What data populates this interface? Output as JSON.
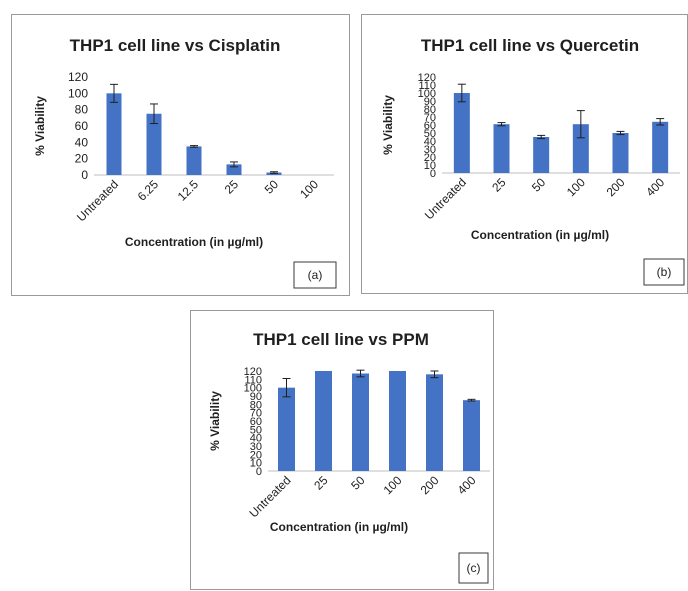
{
  "colors": {
    "bar": "#4472c4",
    "error": "#1f1f1f",
    "text": "#1f1f1f",
    "axis": "#bfbfbf"
  },
  "chart_data": [
    {
      "type": "bar",
      "title": "THP1 cell line vs Cisplatin",
      "xlabel": "Concentration (in µg/ml)",
      "ylabel": "% Viability",
      "tag": "(a)",
      "categories": [
        "Untreated",
        "6.25",
        "12.5",
        "25",
        "50",
        "100"
      ],
      "values": [
        100,
        75,
        35,
        13,
        3,
        0
      ],
      "errors": [
        11,
        12,
        1,
        3,
        1,
        0
      ],
      "ylim": [
        0,
        120
      ],
      "yticks": [
        "0",
        "20",
        "40",
        "60",
        "80",
        "100",
        "120"
      ],
      "grid": false,
      "legend": "none"
    },
    {
      "type": "bar",
      "title": "THP1 cell line vs Quercetin",
      "xlabel": "Concentration (in µg/ml)",
      "ylabel": "% Viability",
      "tag": "(b)",
      "categories": [
        "Untreated",
        "25",
        "50",
        "100",
        "200",
        "400"
      ],
      "values": [
        100,
        61,
        45,
        61,
        50,
        64
      ],
      "errors": [
        11,
        2,
        2,
        17,
        2,
        4
      ],
      "ylim": [
        0,
        120
      ],
      "yticks": [
        "0",
        "10",
        "20",
        "30",
        "40",
        "50",
        "60",
        "70",
        "80",
        "90",
        "100",
        "110",
        "120"
      ],
      "grid": false,
      "legend": "none"
    },
    {
      "type": "bar",
      "title": "THP1 cell line vs PPM",
      "xlabel": "Concentration (in µg/ml)",
      "ylabel": "% Viability",
      "tag": "(c)",
      "categories": [
        "Untreated",
        "25",
        "50",
        "100",
        "200",
        "400"
      ],
      "values": [
        100,
        120,
        117,
        120,
        116,
        85
      ],
      "errors": [
        11,
        0,
        4,
        0,
        4,
        1
      ],
      "ylim": [
        0,
        120
      ],
      "yticks": [
        "0",
        "10",
        "20",
        "30",
        "40",
        "50",
        "60",
        "70",
        "80",
        "90",
        "100",
        "110",
        "120"
      ],
      "grid": false,
      "legend": "none"
    }
  ]
}
